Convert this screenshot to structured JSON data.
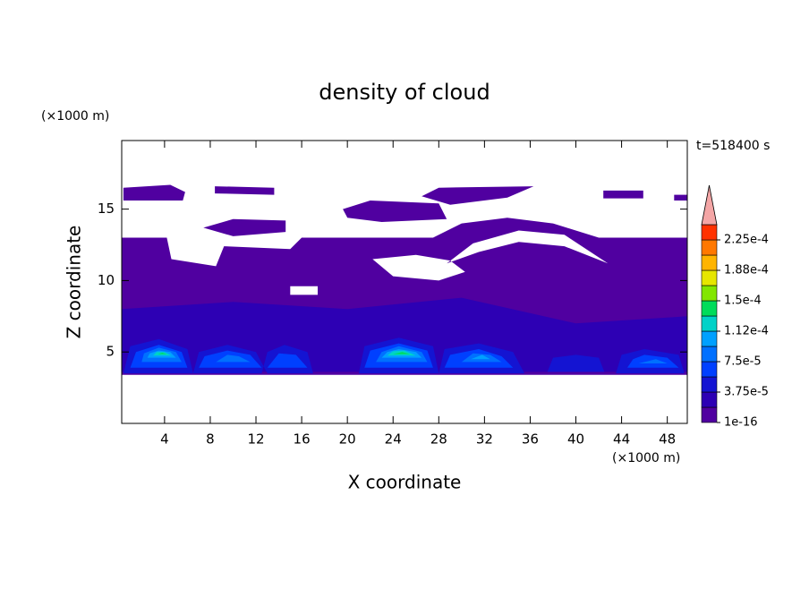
{
  "chart_data": {
    "type": "contour",
    "title": "density of cloud",
    "x_label": "X coordinate",
    "y_label": "Z coordinate",
    "x_unit": "(×1000 m)",
    "y_unit": "(×1000 m)",
    "annotation": "t=518400 s",
    "xlim": [
      0.25,
      49.75
    ],
    "ylim": [
      0,
      19.8
    ],
    "xticks": [
      4,
      8,
      12,
      16,
      20,
      24,
      28,
      32,
      36,
      40,
      44,
      48
    ],
    "yticks": [
      5,
      10,
      15
    ],
    "colorbar": {
      "levels": [
        1e-16,
        1.875e-05,
        3.75e-05,
        5.625e-05,
        7.5e-05,
        9.375e-05,
        0.0001125,
        0.00013125,
        0.00015,
        0.00016875,
        0.0001875,
        0.00020625,
        0.000225
      ],
      "colors": [
        "#5000a0",
        "#2d00b4",
        "#1414d2",
        "#0040ff",
        "#0070ff",
        "#00a0ff",
        "#00d2c8",
        "#00dc5a",
        "#82e600",
        "#e6e600",
        "#ffb400",
        "#ff7800",
        "#ff3200"
      ],
      "extend_color": "#f4a6a6",
      "ticks": [
        {
          "value": 1e-16,
          "label": "1e-16"
        },
        {
          "value": 3.75e-05,
          "label": "3.75e-5"
        },
        {
          "value": 7.5e-05,
          "label": "7.5e-5"
        },
        {
          "value": 0.0001125,
          "label": "1.12e-4"
        },
        {
          "value": 0.00015,
          "label": "1.5e-4"
        },
        {
          "value": 0.0001875,
          "label": "1.88e-4"
        },
        {
          "value": 0.000225,
          "label": "2.25e-4"
        }
      ]
    },
    "regions": [
      {
        "level": 1e-16,
        "rings": [
          [
            [
              0.25,
              3.4
            ],
            [
              49.75,
              3.4
            ],
            [
              49.75,
              13.0
            ],
            [
              42,
              13.0
            ],
            [
              38,
              14.0
            ],
            [
              34,
              14.4
            ],
            [
              30,
              14.0
            ],
            [
              27.5,
              13.0
            ],
            [
              16,
              13.0
            ],
            [
              15,
              12.2
            ],
            [
              9.2,
              12.4
            ],
            [
              8.5,
              11.0
            ],
            [
              4.6,
              11.5
            ],
            [
              4.2,
              13.0
            ],
            [
              0.25,
              13.0
            ]
          ],
          [
            [
              22.2,
              11.5
            ],
            [
              24,
              10.3
            ],
            [
              28,
              10.0
            ],
            [
              30.3,
              10.6
            ],
            [
              29,
              11.4
            ],
            [
              26,
              11.8
            ]
          ],
          [
            [
              28.7,
              11.2
            ],
            [
              31,
              12.6
            ],
            [
              35,
              13.5
            ],
            [
              39,
              13.2
            ],
            [
              42.8,
              11.2
            ],
            [
              39,
              12.4
            ],
            [
              35,
              12.7
            ],
            [
              31.5,
              12.0
            ]
          ],
          [
            [
              15,
              9.0
            ],
            [
              17.4,
              9.0
            ],
            [
              17.4,
              9.6
            ],
            [
              15,
              9.6
            ]
          ],
          [
            [
              10.3,
              7.4
            ],
            [
              12.5,
              7.4
            ],
            [
              12.5,
              7.8
            ],
            [
              10.3,
              7.8
            ]
          ]
        ]
      },
      {
        "level": 1e-16,
        "rings": [
          [
            [
              0.4,
              15.6
            ],
            [
              5.6,
              15.6
            ],
            [
              5.8,
              16.2
            ],
            [
              4.5,
              16.7
            ],
            [
              0.4,
              16.5
            ]
          ]
        ]
      },
      {
        "level": 1e-16,
        "rings": [
          [
            [
              8.4,
              16.1
            ],
            [
              13.6,
              16.0
            ],
            [
              13.6,
              16.5
            ],
            [
              8.4,
              16.6
            ]
          ]
        ]
      },
      {
        "level": 1e-16,
        "rings": [
          [
            [
              7.4,
              13.7
            ],
            [
              10,
              14.3
            ],
            [
              14.6,
              14.2
            ],
            [
              14.6,
              13.4
            ],
            [
              10,
              13.1
            ]
          ]
        ]
      },
      {
        "level": 1e-16,
        "rings": [
          [
            [
              19.6,
              15.0
            ],
            [
              22,
              15.6
            ],
            [
              28,
              15.4
            ],
            [
              28.7,
              14.3
            ],
            [
              23,
              14.1
            ],
            [
              20,
              14.4
            ]
          ]
        ]
      },
      {
        "level": 1e-16,
        "rings": [
          [
            [
              26.5,
              15.9
            ],
            [
              28,
              16.5
            ],
            [
              36.3,
              16.6
            ],
            [
              34,
              15.8
            ],
            [
              29,
              15.3
            ]
          ]
        ]
      },
      {
        "level": 1e-16,
        "rings": [
          [
            [
              42.4,
              15.75
            ],
            [
              45.9,
              15.75
            ],
            [
              45.9,
              16.3
            ],
            [
              42.4,
              16.3
            ]
          ]
        ]
      },
      {
        "level": 1e-16,
        "rings": [
          [
            [
              48.6,
              15.6
            ],
            [
              49.75,
              15.6
            ],
            [
              49.75,
              16.0
            ],
            [
              48.6,
              16.0
            ]
          ]
        ]
      },
      {
        "level": 1.875e-05,
        "rings": [
          [
            [
              0.25,
              3.6
            ],
            [
              49.75,
              3.6
            ],
            [
              49.75,
              7.5
            ],
            [
              40,
              7.0
            ],
            [
              30,
              8.8
            ],
            [
              20,
              8.0
            ],
            [
              10,
              8.5
            ],
            [
              0.25,
              8.0
            ]
          ]
        ]
      },
      {
        "level": 3.75e-05,
        "rings": [
          [
            [
              0.4,
              3.5
            ],
            [
              6.5,
              3.5
            ],
            [
              6,
              5.2
            ],
            [
              3.5,
              5.9
            ],
            [
              1,
              5.4
            ]
          ],
          [
            [
              6.5,
              3.5
            ],
            [
              13,
              3.5
            ],
            [
              12,
              5.0
            ],
            [
              9.5,
              5.5
            ],
            [
              7,
              5.0
            ]
          ],
          [
            [
              12.5,
              3.5
            ],
            [
              17,
              3.5
            ],
            [
              16.5,
              5.0
            ],
            [
              14.5,
              5.5
            ],
            [
              13,
              5.0
            ]
          ],
          [
            [
              21,
              3.5
            ],
            [
              28,
              3.5
            ],
            [
              27.5,
              5.4
            ],
            [
              24.5,
              6.0
            ],
            [
              21.5,
              5.4
            ]
          ],
          [
            [
              28,
              3.5
            ],
            [
              35.5,
              3.5
            ],
            [
              34.5,
              5.0
            ],
            [
              31.5,
              5.6
            ],
            [
              28.5,
              5.2
            ]
          ],
          [
            [
              37.5,
              3.6
            ],
            [
              42.5,
              3.6
            ],
            [
              42,
              4.6
            ],
            [
              40,
              4.8
            ],
            [
              38,
              4.6
            ]
          ],
          [
            [
              43.5,
              3.5
            ],
            [
              49.5,
              3.5
            ],
            [
              49,
              4.8
            ],
            [
              46,
              5.2
            ],
            [
              44,
              4.8
            ]
          ]
        ]
      },
      {
        "level": 5.625e-05,
        "rings": [
          [
            [
              1,
              3.9
            ],
            [
              6,
              3.9
            ],
            [
              5.5,
              5.0
            ],
            [
              3.5,
              5.5
            ],
            [
              1.5,
              5.0
            ]
          ],
          [
            [
              7,
              3.9
            ],
            [
              12.5,
              3.9
            ],
            [
              11.5,
              4.8
            ],
            [
              9.5,
              5.1
            ],
            [
              7.5,
              4.7
            ]
          ],
          [
            [
              13,
              3.9
            ],
            [
              16.5,
              3.9
            ],
            [
              15.5,
              4.8
            ],
            [
              14,
              4.9
            ]
          ],
          [
            [
              21.5,
              3.9
            ],
            [
              27.5,
              3.9
            ],
            [
              27,
              5.1
            ],
            [
              24.5,
              5.6
            ],
            [
              22,
              5.1
            ]
          ],
          [
            [
              28.5,
              3.9
            ],
            [
              34.5,
              3.9
            ],
            [
              33.5,
              4.7
            ],
            [
              31.5,
              5.2
            ],
            [
              29,
              4.8
            ]
          ],
          [
            [
              44.5,
              3.9
            ],
            [
              49,
              3.9
            ],
            [
              48,
              4.6
            ],
            [
              46,
              4.8
            ],
            [
              45,
              4.5
            ]
          ]
        ]
      },
      {
        "level": 7.5e-05,
        "rings": [
          [
            [
              2,
              4.3
            ],
            [
              5.5,
              4.3
            ],
            [
              5,
              5.0
            ],
            [
              3.5,
              5.3
            ],
            [
              2.2,
              4.9
            ]
          ],
          [
            [
              8.5,
              4.3
            ],
            [
              11.5,
              4.3
            ],
            [
              10.5,
              4.7
            ],
            [
              9.5,
              4.8
            ]
          ],
          [
            [
              22.5,
              4.3
            ],
            [
              27,
              4.3
            ],
            [
              26.5,
              5.0
            ],
            [
              24.5,
              5.4
            ],
            [
              23,
              5.0
            ]
          ],
          [
            [
              30,
              4.3
            ],
            [
              33.5,
              4.3
            ],
            [
              32.5,
              4.8
            ],
            [
              31,
              4.9
            ]
          ],
          [
            [
              45.5,
              4.2
            ],
            [
              48,
              4.2
            ],
            [
              47,
              4.5
            ]
          ]
        ]
      },
      {
        "level": 9.375e-05,
        "rings": [
          [
            [
              2.5,
              4.6
            ],
            [
              5,
              4.6
            ],
            [
              4.5,
              5.0
            ],
            [
              3.5,
              5.1
            ],
            [
              2.7,
              4.9
            ]
          ],
          [
            [
              23,
              4.6
            ],
            [
              26.5,
              4.6
            ],
            [
              26,
              5.0
            ],
            [
              24.5,
              5.2
            ],
            [
              23.5,
              5.0
            ]
          ],
          [
            [
              30.8,
              4.5
            ],
            [
              32.5,
              4.5
            ],
            [
              31.8,
              4.8
            ]
          ]
        ]
      },
      {
        "level": 0.0001125,
        "rings": [
          [
            [
              3,
              4.75
            ],
            [
              4.6,
              4.75
            ],
            [
              4,
              5.0
            ],
            [
              3.3,
              5.0
            ]
          ],
          [
            [
              23.5,
              4.75
            ],
            [
              26,
              4.75
            ],
            [
              25,
              5.1
            ],
            [
              24,
              5.05
            ]
          ]
        ]
      },
      {
        "level": 0.00013125,
        "rings": [
          [
            [
              24,
              4.85
            ],
            [
              25.5,
              4.85
            ],
            [
              24.8,
              5.0
            ]
          ],
          [
            [
              3.4,
              4.85
            ],
            [
              4.2,
              4.85
            ],
            [
              3.8,
              4.95
            ]
          ]
        ]
      }
    ]
  }
}
